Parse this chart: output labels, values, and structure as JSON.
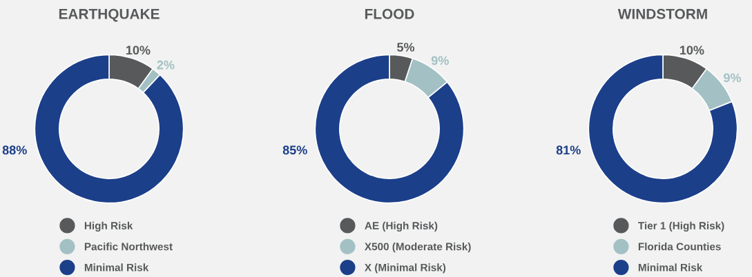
{
  "chart_data": [
    {
      "type": "donut",
      "title": "EARTHQUAKE",
      "categories": [
        "High Risk",
        "Pacific Northwest",
        "Minimal Risk"
      ],
      "values": [
        10,
        2,
        88
      ],
      "value_labels": [
        "10%",
        "2%",
        "88%"
      ],
      "colors": [
        "#58595b",
        "#a3c1c4",
        "#1c3f8a"
      ],
      "legend": "bottom"
    },
    {
      "type": "donut",
      "title": "FLOOD",
      "categories": [
        "AE (High Risk)",
        "X500 (Moderate Risk)",
        "X (Minimal Risk)"
      ],
      "values": [
        5,
        9,
        85
      ],
      "value_labels": [
        "5%",
        "9%",
        "85%"
      ],
      "colors": [
        "#58595b",
        "#a3c1c4",
        "#1c3f8a"
      ],
      "legend": "bottom"
    },
    {
      "type": "donut",
      "title": "WINDSTORM",
      "categories": [
        "Tier 1 (High Risk)",
        "Florida Counties",
        "Minimal Risk"
      ],
      "values": [
        10,
        9,
        81
      ],
      "value_labels": [
        "10%",
        "9%",
        "81%"
      ],
      "colors": [
        "#58595b",
        "#a3c1c4",
        "#1c3f8a"
      ],
      "legend": "bottom"
    }
  ]
}
